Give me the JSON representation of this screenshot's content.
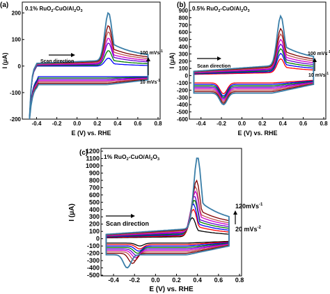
{
  "colors": {
    "series": [
      "#000000",
      "#ff0000",
      "#0000ff",
      "#008000",
      "#6600cc",
      "#cc00cc",
      "#c05050",
      "#800000",
      "#3a7ea8"
    ]
  },
  "panels": [
    {
      "id": "a",
      "letter": "(a)",
      "caption": {
        "pre": "0.1% RuO",
        "s1": "2",
        "mid": "-CuO/Al",
        "s2": "2",
        "mid2": "O",
        "s3": "3"
      },
      "xlabel": "E (V) vs. RHE",
      "ylabel": "I (μA)",
      "xticks": [
        "-0.4",
        "-0.2",
        "0.0",
        "0.2",
        "0.4",
        "0.6",
        "0.8"
      ],
      "yticks": [
        "-200",
        "-100",
        "0",
        "100",
        "200"
      ],
      "scan_label": "Scan direction",
      "rate_top": {
        "text": "100 mVs",
        "sup": "-1"
      },
      "rate_bottom": {
        "text": "10 mVs",
        "sup": "-1"
      }
    },
    {
      "id": "b",
      "letter": "(b)",
      "caption": {
        "pre": "0.5% RuO",
        "s1": "2",
        "mid": "-CuO/Al",
        "s2": "2",
        "mid2": "O",
        "s3": "3"
      },
      "xlabel": "E (V) vs. RHE",
      "ylabel": "I (μA)",
      "xticks": [
        "-0.4",
        "-0.2",
        "0.0",
        "0.2",
        "0.4",
        "0.6",
        "0.8"
      ],
      "yticks": [
        "-600",
        "-500",
        "-400",
        "-300",
        "-200",
        "-100",
        "0",
        "100",
        "200",
        "300",
        "400",
        "500",
        "600",
        "700",
        "800",
        "900"
      ],
      "scan_label": "Scan direction",
      "rate_top": {
        "text": "100 mVs",
        "sup": "-1"
      },
      "rate_bottom": {
        "text": "10 mVs",
        "sup": "-1"
      }
    },
    {
      "id": "c",
      "letter": "(c)",
      "caption": {
        "pre": "1% RuO",
        "s1": "2",
        "mid": "-CuO/Al",
        "s2": "2",
        "mid2": "O",
        "s3": "3"
      },
      "xlabel": "E (V) vs. RHE",
      "ylabel": "I (μA)",
      "xticks": [
        "-0.4",
        "-0.2",
        "0.0",
        "0.2",
        "0.4",
        "0.6",
        "0.8"
      ],
      "yticks": [
        "-500",
        "-400",
        "-300",
        "-200",
        "-100",
        "0",
        "100",
        "200",
        "300",
        "400",
        "500",
        "600",
        "700",
        "800",
        "900",
        "1000",
        "1100",
        "1200"
      ],
      "scan_label": "Scan direction",
      "rate_top": {
        "text": "120mVs",
        "sup": "-1"
      },
      "rate_bottom": {
        "text": "20 mVs",
        "sup": "-2"
      }
    }
  ],
  "chart_data": [
    {
      "type": "line",
      "title": "0.1% RuO2-CuO/Al2O3",
      "xlabel": "E (V) vs. RHE",
      "ylabel": "I (μA)",
      "xlim": [
        -0.5,
        0.8
      ],
      "ylim": [
        -200,
        220
      ],
      "series": [
        {
          "values_note": "",
          "peak_anodic": [
            0.31,
            30
          ],
          "baseline_anodic": 0,
          "cathodic_min": [
            -0.48,
            -190
          ],
          "cathodic_level": -40,
          "cathodic_dip": [
            -0.2,
            -40
          ]
        },
        {
          "peak_anodic": [
            0.31,
            60
          ],
          "baseline_anodic": 5,
          "cathodic_min": [
            -0.48,
            -195
          ],
          "cathodic_level": -45,
          "cathodic_dip": [
            -0.2,
            -45
          ]
        },
        {
          "peak_anodic": [
            0.31,
            90
          ],
          "baseline_anodic": 10,
          "cathodic_min": [
            -0.48,
            -200
          ],
          "cathodic_level": -50,
          "cathodic_dip": [
            -0.2,
            -50
          ]
        },
        {
          "peak_anodic": [
            0.31,
            110
          ],
          "baseline_anodic": 15,
          "cathodic_min": [
            -0.48,
            -200
          ],
          "cathodic_level": -55,
          "cathodic_dip": [
            -0.2,
            -55
          ]
        },
        {
          "peak_anodic": [
            0.31,
            135
          ],
          "baseline_anodic": 20,
          "cathodic_min": [
            -0.48,
            -200
          ],
          "cathodic_level": -60,
          "cathodic_dip": [
            -0.2,
            -60
          ]
        },
        {
          "peak_anodic": [
            0.31,
            160
          ],
          "baseline_anodic": 25,
          "cathodic_min": [
            -0.48,
            -200
          ],
          "cathodic_level": -65,
          "cathodic_dip": [
            -0.2,
            -65
          ]
        },
        {
          "peak_anodic": [
            0.31,
            210
          ],
          "baseline_anodic": 30,
          "cathodic_min": [
            -0.48,
            -200
          ],
          "cathodic_level": -70,
          "cathodic_dip": [
            -0.2,
            -70
          ]
        }
      ]
    },
    {
      "type": "line",
      "title": "0.5% RuO2-CuO/Al2O3",
      "xlabel": "E (V) vs. RHE",
      "ylabel": "I (μA)",
      "xlim": [
        -0.5,
        0.8
      ],
      "ylim": [
        -600,
        900
      ],
      "series": [
        {
          "peak_anodic": [
            0.38,
            250
          ],
          "baseline_anodic": 60,
          "cathodic_level": -100,
          "cathodic_dip": [
            -0.18,
            -250
          ]
        },
        {
          "peak_anodic": [
            0.38,
            330
          ],
          "baseline_anodic": 80,
          "cathodic_level": -120,
          "cathodic_dip": [
            -0.18,
            -280
          ]
        },
        {
          "peak_anodic": [
            0.38,
            400
          ],
          "baseline_anodic": 100,
          "cathodic_level": -140,
          "cathodic_dip": [
            -0.18,
            -300
          ]
        },
        {
          "peak_anodic": [
            0.38,
            470
          ],
          "baseline_anodic": 120,
          "cathodic_level": -160,
          "cathodic_dip": [
            -0.18,
            -320
          ]
        },
        {
          "peak_anodic": [
            0.38,
            540
          ],
          "baseline_anodic": 140,
          "cathodic_level": -180,
          "cathodic_dip": [
            -0.18,
            -340
          ]
        },
        {
          "peak_anodic": [
            0.38,
            620
          ],
          "baseline_anodic": 160,
          "cathodic_level": -200,
          "cathodic_dip": [
            -0.18,
            -360
          ]
        },
        {
          "peak_anodic": [
            0.38,
            700
          ],
          "baseline_anodic": 180,
          "cathodic_level": -220,
          "cathodic_dip": [
            -0.18,
            -380
          ]
        },
        {
          "peak_anodic": [
            0.38,
            880
          ],
          "baseline_anodic": 200,
          "cathodic_level": -240,
          "cathodic_dip": [
            -0.18,
            -400
          ]
        }
      ]
    },
    {
      "type": "line",
      "title": "1% RuO2-CuO/Al2O3",
      "xlabel": "E (V) vs. RHE",
      "ylabel": "I (μA)",
      "xlim": [
        -0.5,
        0.8
      ],
      "ylim": [
        -500,
        1200
      ],
      "series": [
        {
          "peak_anodic": [
            0.35,
            300
          ],
          "baseline_anodic": 40,
          "cathodic_level": -60,
          "cathodic_dip": [
            -0.15,
            -100
          ]
        },
        {
          "peak_anodic": [
            0.36,
            420
          ],
          "baseline_anodic": 60,
          "cathodic_level": -80,
          "cathodic_dip": [
            -0.15,
            -140
          ]
        },
        {
          "peak_anodic": [
            0.36,
            500
          ],
          "baseline_anodic": 80,
          "cathodic_level": -100,
          "cathodic_dip": [
            -0.16,
            -170
          ]
        },
        {
          "peak_anodic": [
            0.37,
            560
          ],
          "baseline_anodic": 100,
          "cathodic_level": -120,
          "cathodic_dip": [
            -0.17,
            -200
          ]
        },
        {
          "peak_anodic": [
            0.37,
            620
          ],
          "baseline_anodic": 120,
          "cathodic_level": -140,
          "cathodic_dip": [
            -0.18,
            -230
          ]
        },
        {
          "peak_anodic": [
            0.38,
            690
          ],
          "baseline_anodic": 140,
          "cathodic_level": -160,
          "cathodic_dip": [
            -0.19,
            -260
          ]
        },
        {
          "peak_anodic": [
            0.38,
            760
          ],
          "baseline_anodic": 160,
          "cathodic_level": -180,
          "cathodic_dip": [
            -0.2,
            -300
          ]
        },
        {
          "peak_anodic": [
            0.39,
            850
          ],
          "baseline_anodic": 180,
          "cathodic_level": -200,
          "cathodic_dip": [
            -0.22,
            -340
          ]
        },
        {
          "peak_anodic": [
            0.4,
            1180
          ],
          "baseline_anodic": 200,
          "cathodic_level": -220,
          "cathodic_dip": [
            -0.27,
            -400
          ]
        }
      ]
    }
  ]
}
